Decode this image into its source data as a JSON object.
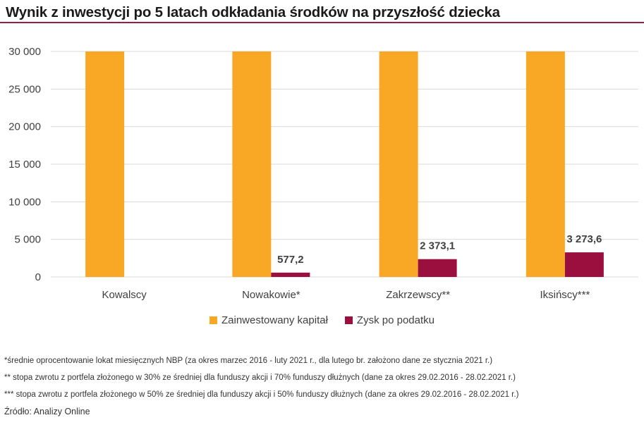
{
  "title": "Wynik z inwestycji po 5 latach odkładania środków na przyszłość dziecka",
  "colors": {
    "accent_rule": "#9b1d4a",
    "capital": "#f9a825",
    "profit": "#9b0f3f",
    "grid": "#d9d9d9"
  },
  "chart_data": {
    "type": "bar",
    "categories": [
      "Kowalscy",
      "Nowakowie*",
      "Zakrzewscy**",
      "Iksińscy***"
    ],
    "series": [
      {
        "name": "Zainwestowany kapitał",
        "values": [
          30000,
          30000,
          30000,
          30000
        ]
      },
      {
        "name": "Zysk po podatku",
        "values": [
          0,
          577.2,
          2373.1,
          3273.6
        ]
      }
    ],
    "data_labels": [
      "",
      "577,2",
      "2 373,1",
      "3 273,6"
    ],
    "yticks": [
      "0",
      "5 000",
      "10 000",
      "15 000",
      "20 000",
      "25 000",
      "30 000"
    ],
    "ylim": [
      0,
      30000
    ],
    "grid": true,
    "legend_position": "bottom"
  },
  "legend": [
    {
      "label": "Zainwestowany kapitał"
    },
    {
      "label": "Zysk po podatku"
    }
  ],
  "notes": [
    "*średnie oprocentowanie lokat miesięcznych NBP (za okres marzec 2016 - luty 2021 r., dla lutego br. założono dane ze stycznia 2021 r.)",
    "** stopa zwrotu z portfela złożonego w 30% ze średniej dla funduszy akcji i 70% funduszy dłużnych (dane za okres 29.02.2016 - 28.02.2021 r.)",
    "*** stopa zwrotu z portfela złożonego w 50% ze średniej dla funduszy akcji i 50% funduszy dłużnych (dane za okres 29.02.2016 - 28.02.2021 r.)"
  ],
  "source": "Źródło: Analizy Online"
}
